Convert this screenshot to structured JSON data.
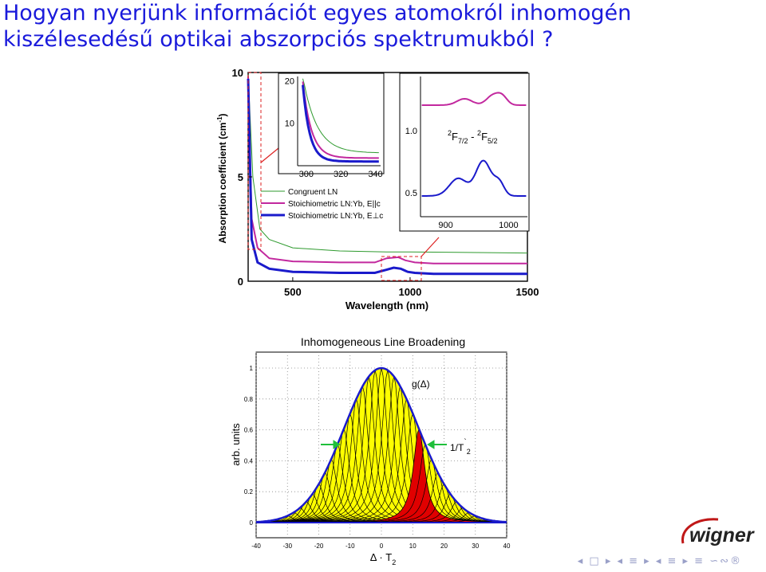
{
  "slide": {
    "title_line1": "Hogyan nyerjünk információt egyes atomokról inhomogén",
    "title_line2": "kiszélesedésű optikai abszorpciós spektrumukból ?"
  },
  "colors": {
    "title": "#1a1adb",
    "green": "#2e9a2e",
    "magenta": "#c2289e",
    "blue": "#1a1acb",
    "yellow": "#ffff00",
    "red": "#e00000"
  },
  "chart_data": [
    {
      "type": "line",
      "xlabel": "Wavelength (nm)",
      "ylabel": "Absorption coefficient (cm⁻¹)",
      "ylabel_base": "Absorption coefficient (cm",
      "ylabel_sup": "-1",
      "ylabel_close": ")",
      "xlim": [
        310,
        1500
      ],
      "ylim": [
        0,
        10
      ],
      "xticks": [
        "500",
        "1000",
        "1500"
      ],
      "yticks": [
        "0",
        "5",
        "10"
      ],
      "series": [
        {
          "name": "Congruent LN",
          "x": [
            310,
            330,
            360,
            400,
            500,
            700,
            900,
            1000,
            1200,
            1500
          ],
          "y": [
            9.9,
            5.0,
            2.5,
            2.0,
            1.6,
            1.45,
            1.4,
            1.4,
            1.38,
            1.35
          ]
        },
        {
          "name": "Stoichiometric LN:Yb, E||c",
          "x": [
            310,
            325,
            350,
            400,
            500,
            700,
            850,
            900,
            950,
            980,
            1020,
            1100,
            1500
          ],
          "y": [
            9.8,
            3.0,
            1.6,
            1.1,
            0.95,
            0.9,
            0.9,
            1.1,
            1.15,
            1.0,
            0.9,
            0.85,
            0.85
          ]
        },
        {
          "name": "Stoichiometric LN:Yb, E⊥c",
          "x": [
            310,
            325,
            350,
            400,
            500,
            700,
            850,
            900,
            930,
            960,
            990,
            1020,
            1100,
            1500
          ],
          "y": [
            9.7,
            2.0,
            0.9,
            0.6,
            0.45,
            0.4,
            0.4,
            0.55,
            0.65,
            0.6,
            0.45,
            0.4,
            0.35,
            0.35
          ]
        }
      ],
      "inset_left": {
        "xticks": [
          "300",
          "320",
          "340"
        ],
        "yticks": [
          "10",
          "20"
        ],
        "xlim": [
          295,
          343
        ],
        "ylim": [
          0,
          21
        ]
      },
      "inset_right": {
        "xticks": [
          "900",
          "1000"
        ],
        "yticks": [
          "0.5",
          "1.0"
        ],
        "annotation": "²F₇/₂ - ²F₅/₂",
        "ann_sup1": "2",
        "ann_F1": "F",
        "ann_sub1": "7/2",
        "ann_dash": " - ",
        "ann_sup2": "2",
        "ann_F2": "F",
        "ann_sub2": "5/2"
      }
    },
    {
      "type": "area",
      "title": "Inhomogeneous Line Broadening",
      "ylabel": "arb. units",
      "xlabel_delta": "Δ",
      "xlabel_dot": " · ",
      "xlabel_T": "T",
      "xlabel_sub": "2",
      "xlim": [
        -40,
        40
      ],
      "ylim": [
        0,
        1
      ],
      "xticks": [
        "-40",
        "-30",
        "-20",
        "-10",
        "0",
        "10",
        "20",
        "30",
        "40"
      ],
      "yticks": [
        "0",
        "0.2",
        "0.4",
        "0.6",
        "0.8",
        "1"
      ],
      "envelope_label": "g(Δ)",
      "width_label_base": "1/T",
      "width_label_prime": "`",
      "width_label_sub": "2",
      "envelope_sigma": 12,
      "line_centers": [
        -30,
        -28,
        -26,
        -24,
        -22,
        -20,
        -18,
        -16,
        -14,
        -12,
        -10,
        -8,
        -6,
        -4,
        -2,
        0,
        2,
        4,
        6,
        8,
        10,
        12,
        14,
        16,
        18,
        20,
        22,
        24,
        26,
        28,
        30
      ],
      "highlight_center": 12,
      "line_width": 2.2
    }
  ],
  "footer": {
    "logo_text": "wigner",
    "nav_symbols": "◂ □ ▸ ◂ ≡ ▸ ◂ ≡ ▸ ≡ ∽∾®"
  }
}
